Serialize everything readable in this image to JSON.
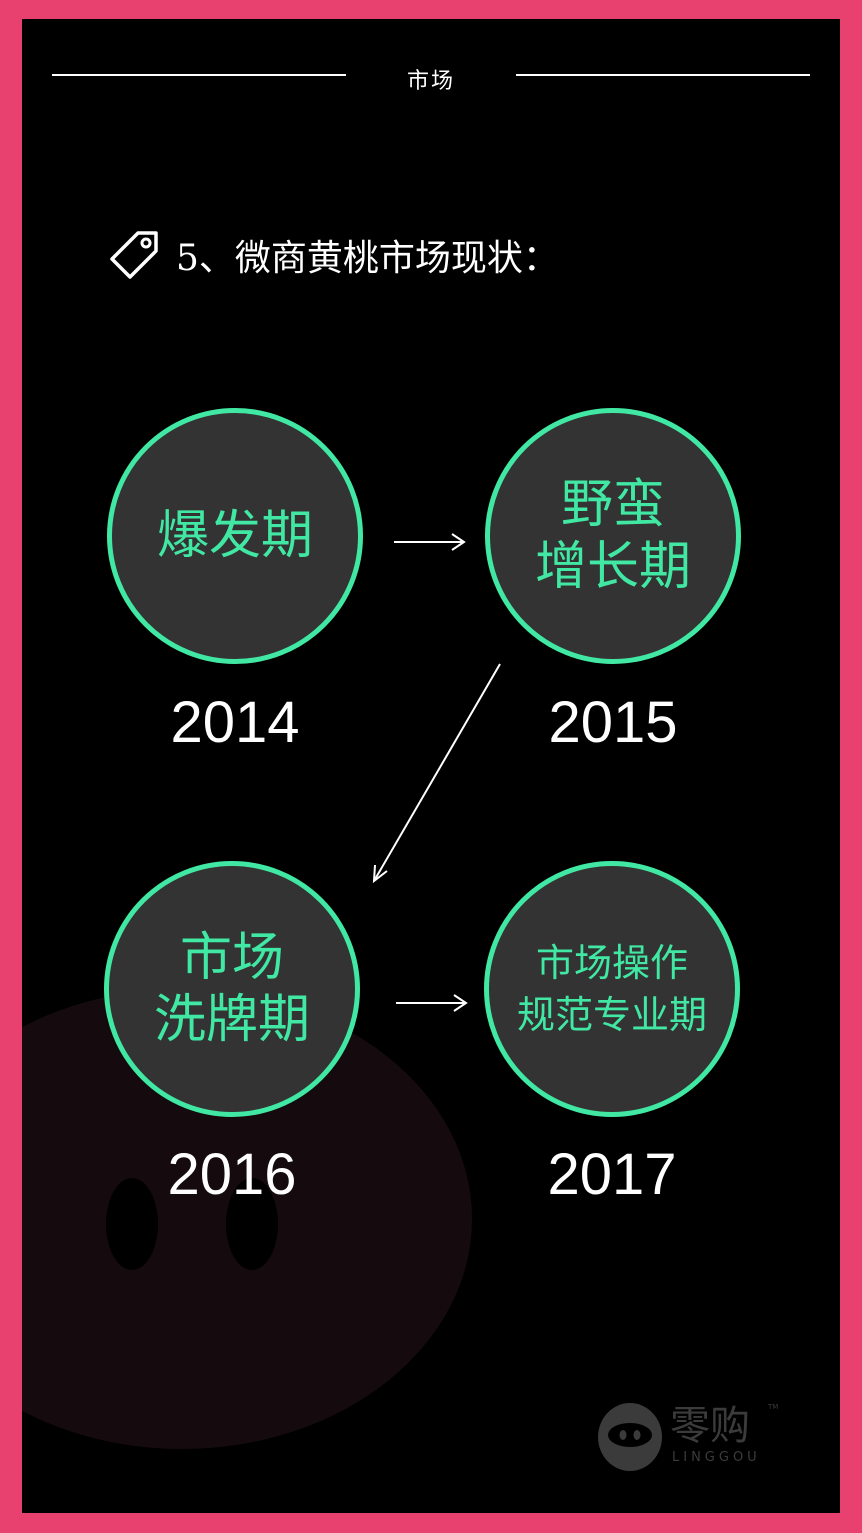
{
  "header": {
    "title": "市场"
  },
  "section": {
    "title": "5、微商黄桃市场现状：",
    "icon": "tag-icon"
  },
  "stages": [
    {
      "lines": [
        "爆发期"
      ],
      "year": "2014"
    },
    {
      "lines": [
        "野蛮",
        "增长期"
      ],
      "year": "2015"
    },
    {
      "lines": [
        "市场",
        "洗牌期"
      ],
      "year": "2016"
    },
    {
      "lines": [
        "市场操作",
        "规范专业期"
      ],
      "year": "2017"
    }
  ],
  "logo": {
    "name": "零购",
    "sub": "LINGGOU",
    "tm": "TM"
  },
  "colors": {
    "border": "#e8416f",
    "background": "#000000",
    "accent": "#40e8a4",
    "circle_fill": "#333333",
    "text": "#ffffff"
  }
}
